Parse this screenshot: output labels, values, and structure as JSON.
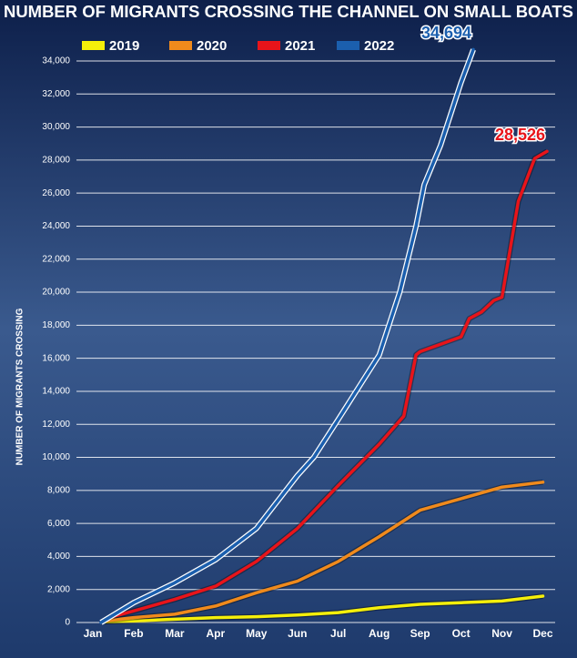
{
  "chart_data": {
    "type": "line",
    "title": "NUMBER OF MIGRANTS CROSSING THE CHANNEL ON SMALL BOATS",
    "y_label": "NUMBER OF MIGRANTS CROSSING",
    "xlim": [
      -0.4,
      11.3
    ],
    "xticks": [
      {
        "value": 0,
        "label": "Jan"
      },
      {
        "value": 1,
        "label": "Feb"
      },
      {
        "value": 2,
        "label": "Mar"
      },
      {
        "value": 3,
        "label": "Apr"
      },
      {
        "value": 4,
        "label": "May"
      },
      {
        "value": 5,
        "label": "Jun"
      },
      {
        "value": 6,
        "label": "Jul"
      },
      {
        "value": 7,
        "label": "Aug"
      },
      {
        "value": 8,
        "label": "Sep"
      },
      {
        "value": 9,
        "label": "Oct"
      },
      {
        "value": 10,
        "label": "Nov"
      },
      {
        "value": 11,
        "label": "Dec"
      }
    ],
    "ylim": [
      0,
      34000
    ],
    "yticks": [
      0,
      {
        "value": 2000,
        "label": "2,000"
      },
      {
        "value": 4000,
        "label": "4,000"
      },
      {
        "value": 6000,
        "label": "6,000"
      },
      {
        "value": 8000,
        "label": "8,000"
      },
      {
        "value": 10000,
        "label": "10,000"
      },
      {
        "value": 12000,
        "label": "12,000"
      },
      {
        "value": 14000,
        "label": "14,000"
      },
      {
        "value": 16000,
        "label": "16,000"
      },
      {
        "value": 18000,
        "label": "18,000"
      },
      {
        "value": 20000,
        "label": "20,000"
      },
      {
        "value": 22000,
        "label": "22,000"
      },
      {
        "value": 24000,
        "label": "24,000"
      },
      {
        "value": 26000,
        "label": "26,000"
      },
      {
        "value": 28000,
        "label": "28,000"
      },
      {
        "value": 30000,
        "label": "30,000"
      },
      {
        "value": 32000,
        "label": "32,000"
      },
      {
        "value": 34000,
        "label": "34,000"
      }
    ],
    "grid": true,
    "legend": "top",
    "series": [
      {
        "name": "2019",
        "color": "#f5ef0a",
        "x": [
          0.3,
          1,
          2,
          3,
          4,
          5,
          6,
          7,
          8,
          9,
          10,
          11
        ],
        "values": [
          50,
          100,
          200,
          300,
          350,
          450,
          600,
          900,
          1100,
          1200,
          1300,
          1600
        ]
      },
      {
        "name": "2020",
        "color": "#f08a1c",
        "x": [
          0.3,
          1,
          2,
          3,
          4,
          5,
          6,
          7,
          8,
          9,
          10,
          11
        ],
        "values": [
          100,
          300,
          500,
          1000,
          1800,
          2500,
          3700,
          5200,
          6800,
          7500,
          8200,
          8500
        ]
      },
      {
        "name": "2021",
        "color": "#e8141a",
        "x": [
          0.4,
          1,
          2,
          3,
          4,
          5,
          6,
          7,
          7.6,
          7.9,
          8,
          9,
          9.2,
          9.5,
          9.8,
          10,
          10.4,
          10.8,
          11.1
        ],
        "values": [
          300,
          700,
          1400,
          2200,
          3700,
          5700,
          8300,
          10800,
          12500,
          16200,
          16400,
          17300,
          18400,
          18800,
          19500,
          19700,
          25500,
          28100,
          28526
        ],
        "value_labels": [
          null,
          null,
          null,
          null,
          null,
          null,
          null,
          null,
          null,
          null,
          null,
          null,
          null,
          null,
          null,
          null,
          null,
          null,
          "28,526"
        ]
      },
      {
        "name": "2022",
        "color": "#1b5fae",
        "x": [
          0.2,
          1,
          2,
          3,
          4,
          5,
          5.4,
          6,
          7,
          7.5,
          7.9,
          8.1,
          8.5,
          9,
          9.3
        ],
        "values": [
          0,
          1200,
          2400,
          3800,
          5700,
          8900,
          10000,
          12300,
          16200,
          20000,
          24000,
          26500,
          28900,
          32700,
          34694
        ],
        "value_labels": [
          null,
          null,
          null,
          null,
          null,
          null,
          null,
          null,
          null,
          null,
          null,
          null,
          null,
          null,
          "34,694"
        ]
      }
    ]
  }
}
